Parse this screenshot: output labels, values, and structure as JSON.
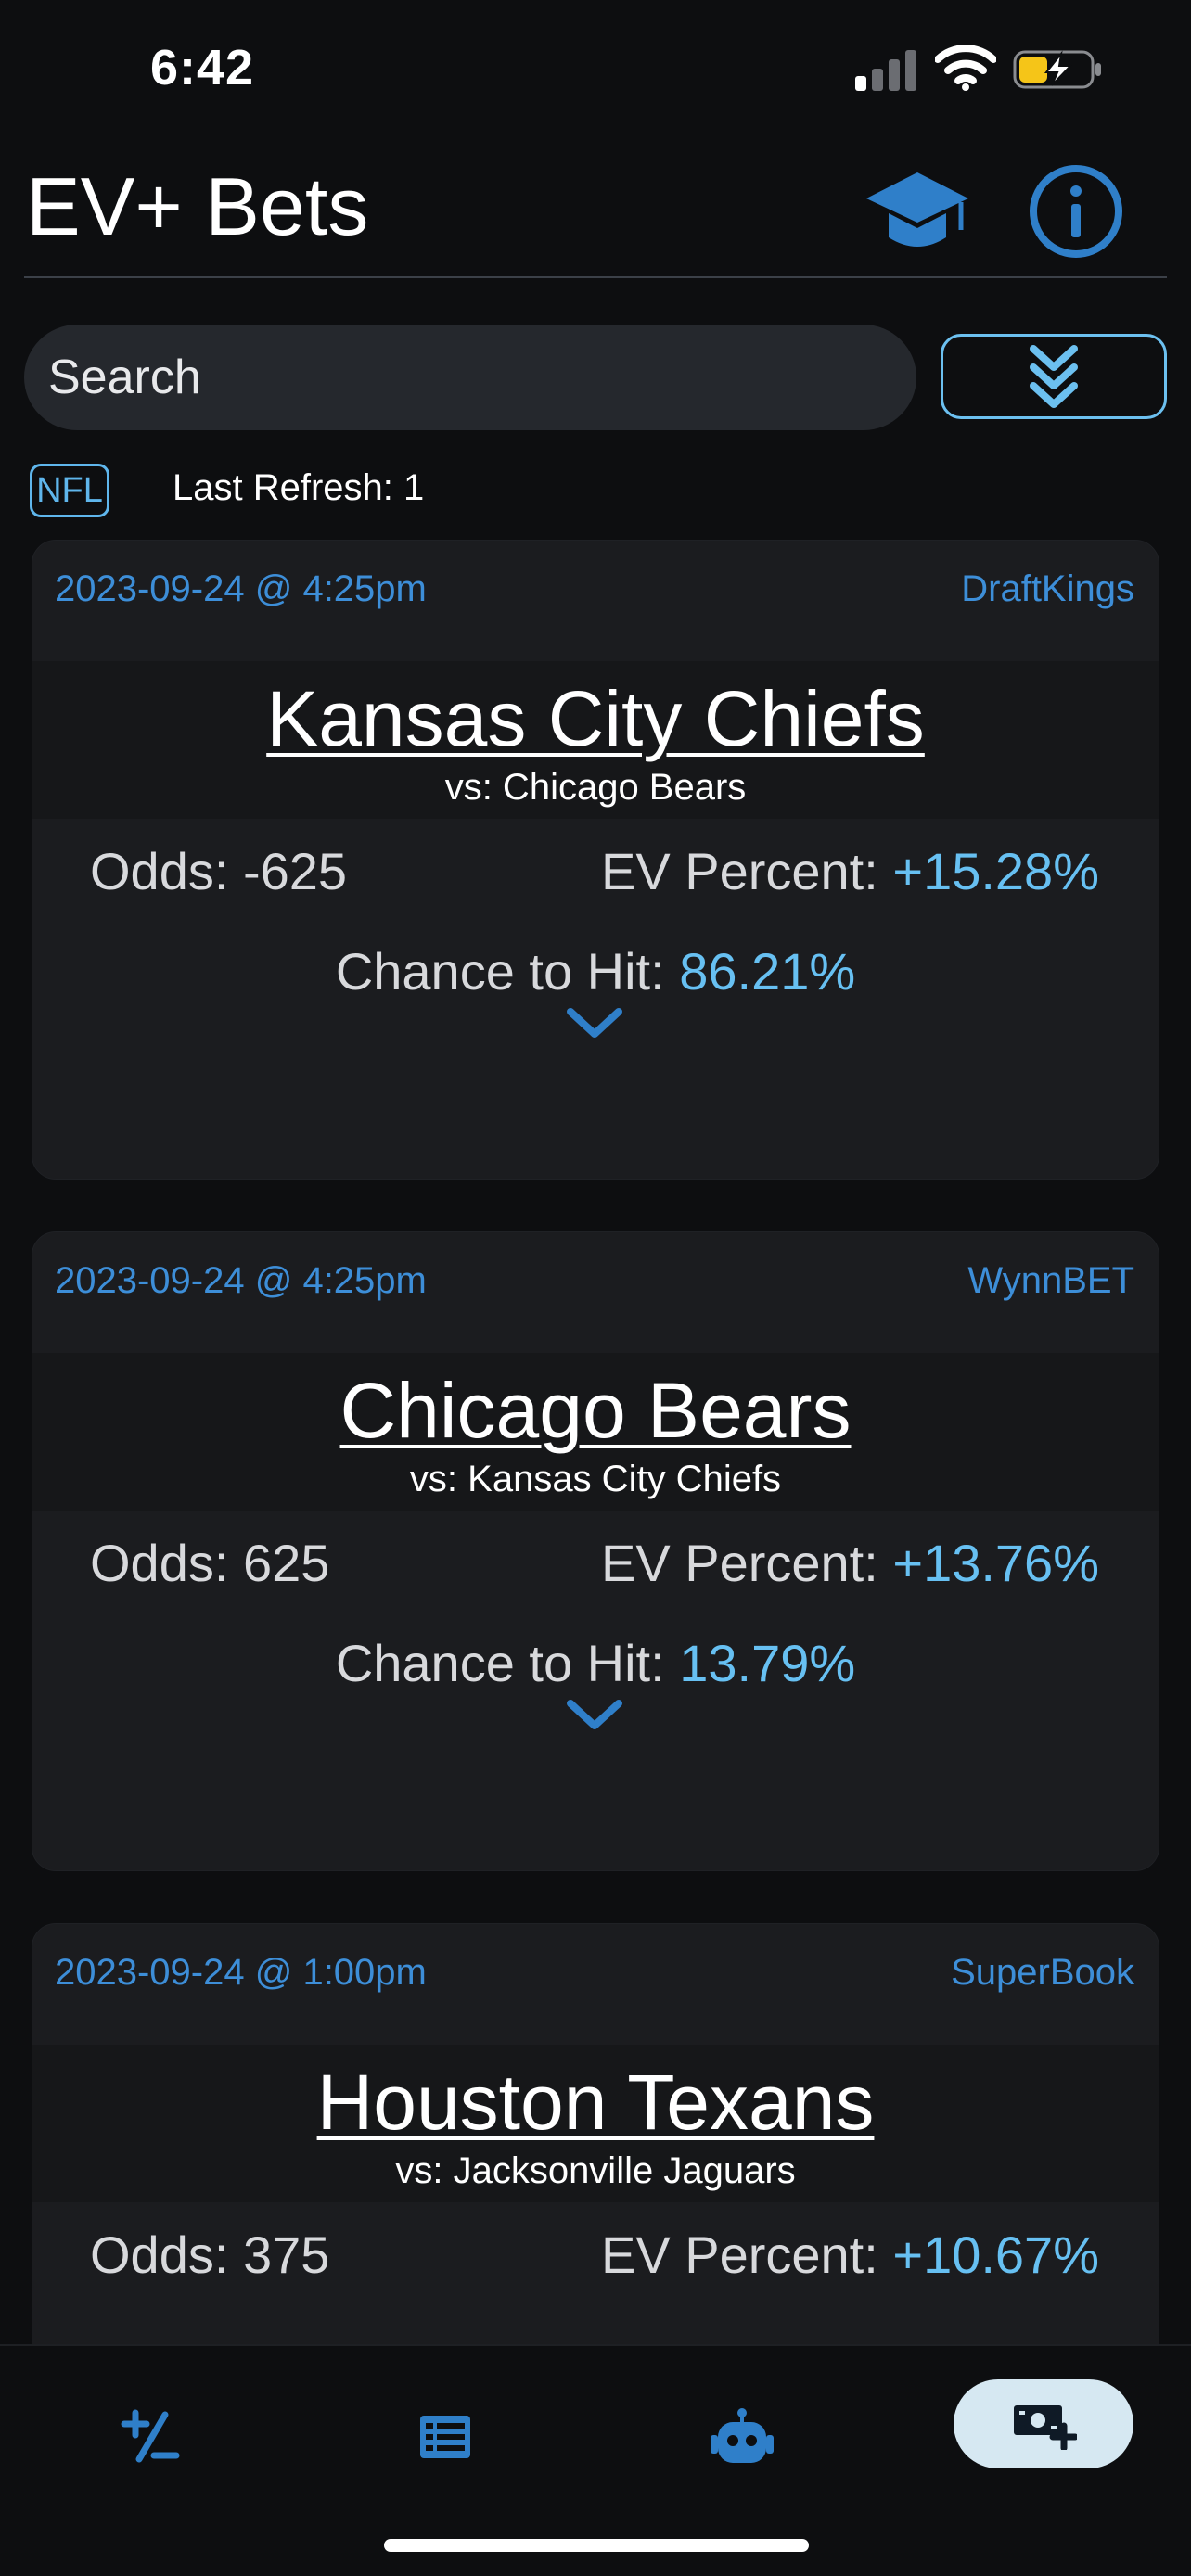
{
  "status_bar": {
    "time": "6:42",
    "signal_bars_active": 1,
    "battery_charging": true
  },
  "header": {
    "title": "EV+ Bets",
    "learn_icon": "graduation-cap-icon",
    "info_icon": "info-circle-icon"
  },
  "search": {
    "placeholder": "Search",
    "value": ""
  },
  "filter": {
    "league_tag": "NFL",
    "last_refresh": "Last Refresh: 1"
  },
  "cards": [
    {
      "date": "2023-09-24 @ 4:25pm",
      "book": "DraftKings",
      "team": "Kansas City Chiefs",
      "opponent": "vs: Chicago Bears",
      "odds_label": "Odds: -625",
      "ev_label": "EV Percent: ",
      "ev_value": "+15.28%",
      "chance_label": "Chance to Hit: ",
      "chance_value": "86.21%"
    },
    {
      "date": "2023-09-24 @ 4:25pm",
      "book": "WynnBET",
      "team": "Chicago Bears",
      "opponent": "vs: Kansas City Chiefs",
      "odds_label": "Odds: 625",
      "ev_label": "EV Percent: ",
      "ev_value": "+13.76%",
      "chance_label": "Chance to Hit: ",
      "chance_value": "13.79%"
    },
    {
      "date": "2023-09-24 @ 1:00pm",
      "book": "SuperBook",
      "team": "Houston Texans",
      "opponent": "vs: Jacksonville Jaguars",
      "odds_label": "Odds: 375",
      "ev_label": "EV Percent: ",
      "ev_value": "+10.67%",
      "chance_label": "",
      "chance_value": ""
    }
  ],
  "tabbar": {
    "tabs": [
      {
        "icon": "plus-minus-icon",
        "active": false
      },
      {
        "icon": "list-icon",
        "active": false
      },
      {
        "icon": "robot-icon",
        "active": false
      },
      {
        "icon": "money-plus-icon",
        "active": true
      }
    ]
  },
  "colors": {
    "accent": "#3d8ed8",
    "highlight": "#67c0f2",
    "background": "#0d0e10",
    "card": "#1b1c1f",
    "active_tab_bg": "#d6e8f2"
  }
}
